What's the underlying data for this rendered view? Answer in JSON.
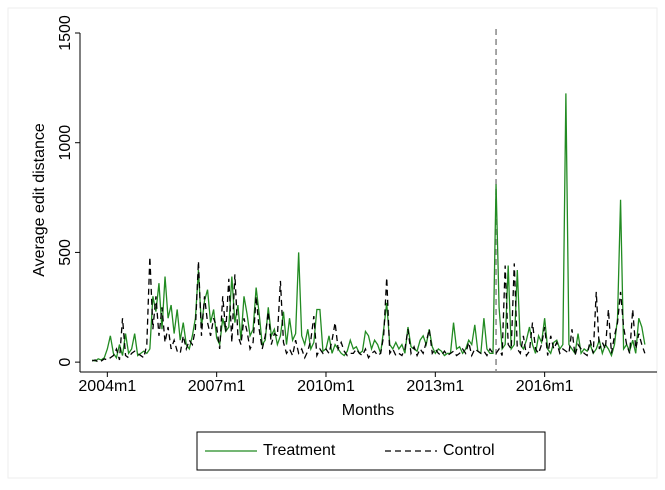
{
  "chart_data": {
    "type": "line",
    "y_label": "Average edit distance",
    "x_label": "Months",
    "xlim": [
      519,
      709
    ],
    "ylim": [
      -45,
      1500
    ],
    "xticks": [
      {
        "value": 528,
        "label": "2004m1"
      },
      {
        "value": 564,
        "label": "2007m1"
      },
      {
        "value": 600,
        "label": "2010m1"
      },
      {
        "value": 636,
        "label": "2013m1"
      },
      {
        "value": 672,
        "label": "2016m1"
      }
    ],
    "yticks": [
      0,
      500,
      1000,
      1500
    ],
    "vline_x": 656,
    "legend": "bottom",
    "x": [
      523,
      524,
      525,
      526,
      527,
      528,
      529,
      530,
      531,
      532,
      533,
      534,
      535,
      536,
      537,
      538,
      539,
      540,
      541,
      542,
      543,
      544,
      545,
      546,
      547,
      548,
      549,
      550,
      551,
      552,
      553,
      554,
      555,
      556,
      557,
      558,
      559,
      560,
      561,
      562,
      563,
      564,
      565,
      566,
      567,
      568,
      569,
      570,
      571,
      572,
      573,
      574,
      575,
      576,
      577,
      578,
      579,
      580,
      581,
      582,
      583,
      584,
      585,
      586,
      587,
      588,
      589,
      590,
      591,
      592,
      593,
      594,
      595,
      596,
      597,
      598,
      599,
      600,
      601,
      602,
      603,
      604,
      605,
      606,
      607,
      608,
      609,
      610,
      611,
      612,
      613,
      614,
      615,
      616,
      617,
      618,
      619,
      620,
      621,
      622,
      623,
      624,
      625,
      626,
      627,
      628,
      629,
      630,
      631,
      632,
      633,
      634,
      635,
      636,
      637,
      638,
      639,
      640,
      641,
      642,
      643,
      644,
      645,
      646,
      647,
      648,
      649,
      650,
      651,
      652,
      653,
      654,
      655,
      656,
      657,
      658,
      659,
      660,
      661,
      662,
      663,
      664,
      665,
      666,
      667,
      668,
      669,
      670,
      671,
      672,
      673,
      674,
      675,
      676,
      677,
      678,
      679,
      680,
      681,
      682,
      683,
      684,
      685,
      686,
      687,
      688,
      689,
      690,
      691,
      692,
      693,
      694,
      695,
      696,
      697,
      698,
      699,
      700,
      701,
      702,
      703,
      704,
      705
    ],
    "series": [
      {
        "name": "Treatment",
        "color": "#228b22",
        "dash": "solid",
        "values": [
          10,
          5,
          15,
          10,
          20,
          60,
          120,
          40,
          20,
          80,
          30,
          130,
          40,
          60,
          130,
          30,
          40,
          50,
          40,
          60,
          300,
          230,
          360,
          150,
          390,
          200,
          260,
          130,
          240,
          100,
          180,
          80,
          60,
          120,
          200,
          420,
          160,
          280,
          330,
          180,
          240,
          110,
          80,
          200,
          140,
          160,
          390,
          180,
          260,
          100,
          300,
          220,
          120,
          150,
          340,
          220,
          80,
          100,
          250,
          120,
          150,
          80,
          120,
          230,
          80,
          200,
          100,
          130,
          500,
          120,
          80,
          150,
          60,
          90,
          240,
          240,
          50,
          60,
          120,
          40,
          80,
          60,
          40,
          30,
          50,
          100,
          60,
          70,
          40,
          50,
          140,
          120,
          60,
          100,
          80,
          40,
          150,
          270,
          80,
          60,
          90,
          60,
          80,
          40,
          160,
          70,
          60,
          50,
          100,
          120,
          80,
          150,
          70,
          40,
          60,
          50,
          30,
          40,
          40,
          180,
          60,
          70,
          40,
          60,
          100,
          80,
          170,
          50,
          40,
          200,
          60,
          40,
          40,
          810,
          250,
          60,
          80,
          440,
          60,
          80,
          420,
          80,
          60,
          100,
          160,
          80,
          40,
          120,
          90,
          200,
          60,
          40,
          90,
          100,
          60,
          80,
          1225,
          80,
          60,
          40,
          130,
          40,
          60,
          50,
          80,
          40,
          60,
          100,
          40,
          80,
          60,
          30,
          80,
          200,
          740,
          60,
          80,
          50,
          100,
          40,
          200,
          160,
          80
        ]
      },
      {
        "name": "Control",
        "color": "#000000",
        "dash": "dashed",
        "values": [
          5,
          10,
          0,
          5,
          15,
          10,
          20,
          30,
          60,
          10,
          200,
          30,
          20,
          40,
          50,
          40,
          30,
          20,
          80,
          480,
          150,
          300,
          120,
          250,
          90,
          160,
          60,
          100,
          50,
          40,
          120,
          60,
          100,
          80,
          150,
          460,
          120,
          300,
          180,
          120,
          200,
          160,
          60,
          300,
          140,
          380,
          90,
          400,
          120,
          80,
          200,
          140,
          60,
          90,
          300,
          150,
          60,
          120,
          230,
          80,
          130,
          120,
          370,
          90,
          40,
          60,
          30,
          100,
          40,
          60,
          20,
          50,
          100,
          210,
          30,
          60,
          40,
          60,
          40,
          100,
          180,
          60,
          90,
          50,
          30,
          40,
          40,
          60,
          40,
          30,
          60,
          20,
          40,
          50,
          30,
          40,
          120,
          385,
          40,
          60,
          30,
          40,
          30,
          60,
          150,
          40,
          70,
          30,
          60,
          40,
          90,
          150,
          40,
          60,
          40,
          30,
          50,
          30,
          40,
          50,
          30,
          40,
          60,
          40,
          90,
          30,
          60,
          50,
          40,
          50,
          30,
          60,
          40,
          40,
          60,
          30,
          440,
          80,
          60,
          450,
          60,
          40,
          120,
          30,
          50,
          180,
          60,
          40,
          80,
          160,
          30,
          120,
          60,
          90,
          40,
          60,
          50,
          40,
          150,
          30,
          80,
          60,
          40,
          30,
          100,
          40,
          320,
          60,
          90,
          60,
          240,
          40,
          120,
          180,
          320,
          160,
          80,
          40,
          240,
          60,
          130,
          80,
          40
        ]
      }
    ]
  }
}
